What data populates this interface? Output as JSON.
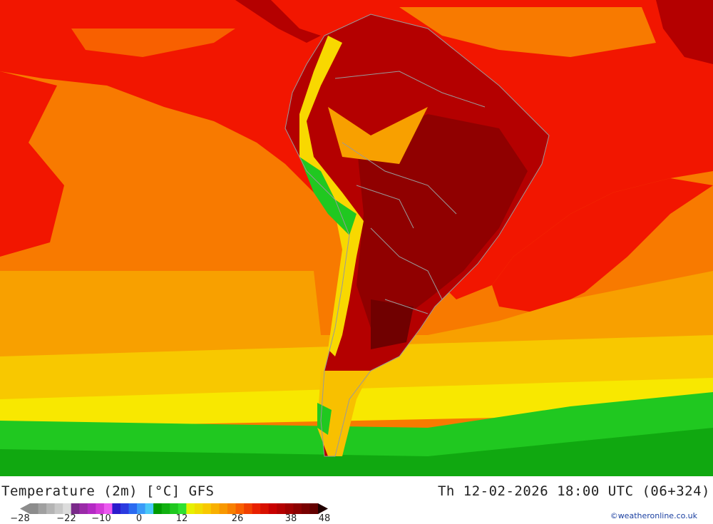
{
  "title": "Temperature (2m) [°C] GFS",
  "datetime": "Th 12-02-2026 18:00 UTC (06+324)",
  "credit": "©weatheronline.co.uk",
  "legend": {
    "ticks": [
      "-28",
      "-22",
      "-10",
      "0",
      "12",
      "26",
      "38",
      "48"
    ],
    "colors": [
      "#8c8c8c",
      "#a0a0a0",
      "#b4b4b4",
      "#c8c8c8",
      "#dcdcdc",
      "#7a2a8a",
      "#9a2aa8",
      "#b42ac4",
      "#d23ad8",
      "#ec5af0",
      "#2a1acc",
      "#2a3ae0",
      "#2a6af0",
      "#3a9af8",
      "#4ac8f8",
      "#009a00",
      "#10b010",
      "#20c820",
      "#30e030",
      "#e6f000",
      "#f0dc00",
      "#f8c800",
      "#f8b000",
      "#f89800",
      "#f88000",
      "#f86000",
      "#f04000",
      "#e82000",
      "#d81000",
      "#c80000",
      "#b40000",
      "#a00000",
      "#8c0000",
      "#780000",
      "#640000"
    ]
  },
  "map_colors": {
    "ocean_red": "#f21600",
    "ocean_orange": "#f87800",
    "land_dark": "#a00000",
    "green": "#10c010",
    "yellow": "#f8e000",
    "border": "#9a9a9a"
  }
}
